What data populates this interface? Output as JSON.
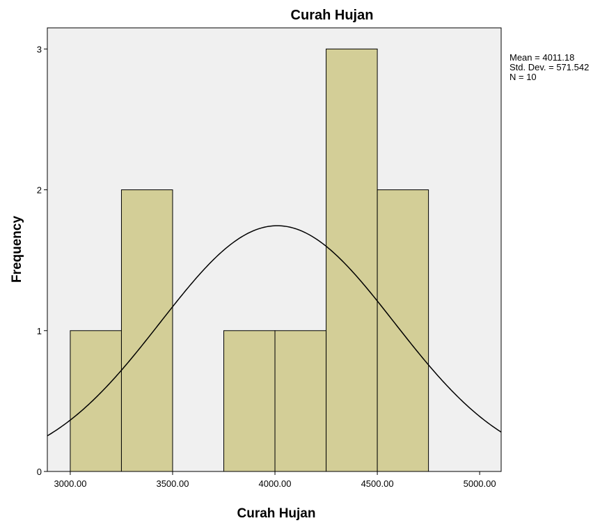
{
  "chart_data": {
    "type": "histogram",
    "title": "Curah Hujan",
    "x_label": "Curah Hujan",
    "y_label": "Frequency",
    "bins": [
      3000,
      3250,
      3500,
      3750,
      4000,
      4250,
      4500,
      4750
    ],
    "values": [
      1,
      2,
      0,
      1,
      1,
      3,
      2
    ],
    "color": "#d3ce97",
    "xlim": [
      2888,
      5105
    ],
    "xticks": [
      {
        "value": 3000,
        "label": "3000.00"
      },
      {
        "value": 3500,
        "label": "3500.00"
      },
      {
        "value": 4000,
        "label": "4000.00"
      },
      {
        "value": 4500,
        "label": "4500.00"
      },
      {
        "value": 5000,
        "label": "5000.00"
      }
    ],
    "ylim": [
      0,
      3.15
    ],
    "yticks": [
      0,
      1,
      2,
      3
    ],
    "stats": [
      {
        "label": "Mean = 4011.18",
        "value": 4011.18
      },
      {
        "label": "Std. Dev. = 571.542",
        "value": 571.542
      },
      {
        "label": "N = 10",
        "value": 10
      }
    ]
  }
}
